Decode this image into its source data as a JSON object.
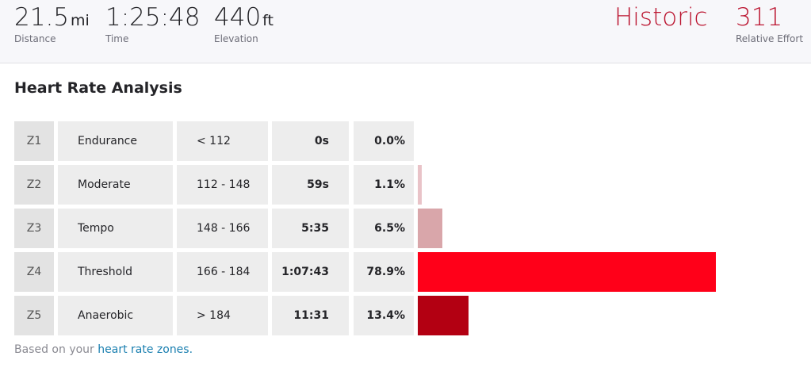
{
  "header": {
    "stats": [
      {
        "value": 21.5,
        "unit": "mi",
        "label": "Distance"
      },
      {
        "value": "1:25:48",
        "label": "Time"
      },
      {
        "value": 440,
        "unit": "ft",
        "label": "Elevation"
      }
    ],
    "effort": {
      "level": "Historic",
      "value": 311,
      "label": "Relative Effort"
    }
  },
  "section": {
    "title": "Heart Rate Analysis"
  },
  "table": {
    "rows": [
      {
        "zone": "Z1",
        "name": "Endurance",
        "range": "< 112",
        "time": "0s",
        "percent": {
          "value": 0,
          "label": "0.0%"
        },
        "color": "#f0d8db"
      },
      {
        "zone": "Z2",
        "name": "Moderate",
        "range": "112 - 148",
        "time": "59s",
        "percent": {
          "value": 1.1,
          "label": "1.1%"
        },
        "color": "#e9c3c8"
      },
      {
        "zone": "Z3",
        "name": "Tempo",
        "range": "148 - 166",
        "time": "5:35",
        "percent": {
          "value": 6.5,
          "label": "6.5%"
        },
        "color": "#d9a6aa"
      },
      {
        "zone": "Z4",
        "name": "Threshold",
        "range": "166 - 184",
        "time": "1:07:43",
        "percent": {
          "value": 78.9,
          "label": "78.9%"
        },
        "color": "#ff0019"
      },
      {
        "zone": "Z5",
        "name": "Anaerobic",
        "range": "> 184",
        "time": "11:31",
        "percent": {
          "value": 13.4,
          "label": "13.4%"
        },
        "color": "#b30012"
      }
    ]
  },
  "footer": {
    "text": "Based on your",
    "link": "heart rate zones."
  }
}
